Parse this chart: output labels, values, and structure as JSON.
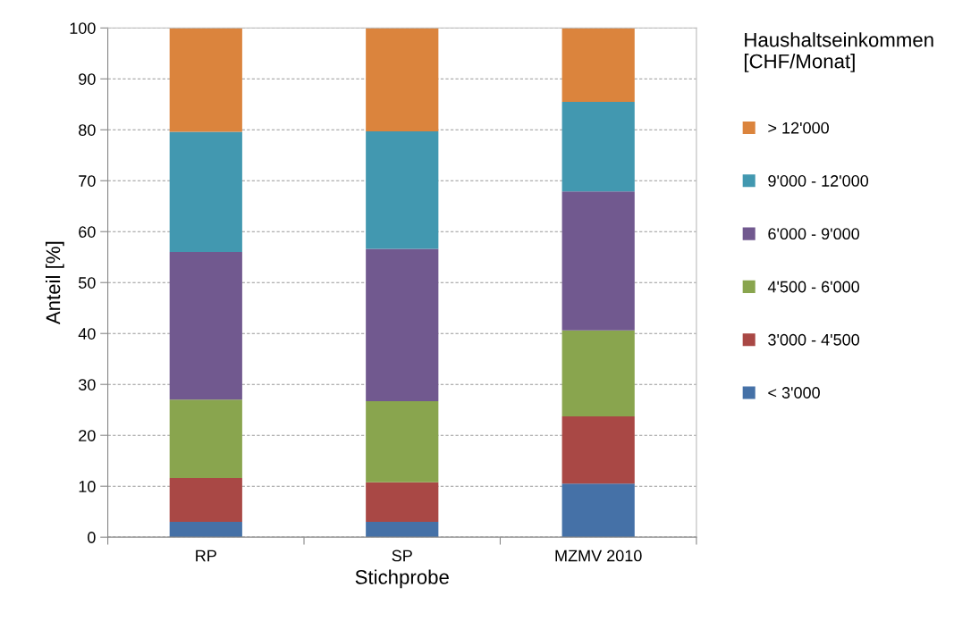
{
  "chart_data": {
    "type": "bar",
    "stacked": true,
    "xlabel": "Stichprobe",
    "ylabel": "Anteil [%]",
    "legend_title": "Haushaltseinkommen\n[CHF/Monat]",
    "legend": "right",
    "categories": [
      "RP",
      "SP",
      "MZMV 2010"
    ],
    "series": [
      {
        "name": "< 3'000",
        "color": "#4571a7",
        "values": [
          3.0,
          3.0,
          10.5
        ]
      },
      {
        "name": "3'000 - 4'500",
        "color": "#a94845",
        "values": [
          8.6,
          7.8,
          13.2
        ]
      },
      {
        "name": "4'500 - 6'000",
        "color": "#89a54e",
        "values": [
          15.4,
          15.9,
          16.9
        ]
      },
      {
        "name": "6'000 - 9'000",
        "color": "#71598f",
        "values": [
          29.0,
          29.9,
          27.3
        ]
      },
      {
        "name": "9'000 - 12'000",
        "color": "#4298b0",
        "values": [
          23.6,
          23.1,
          17.6
        ]
      },
      {
        "name": "> 12'000",
        "color": "#db843d",
        "values": [
          20.4,
          20.3,
          14.5
        ]
      }
    ],
    "ylim": [
      0,
      100
    ],
    "yticks": [
      0,
      10,
      20,
      30,
      40,
      50,
      60,
      70,
      80,
      90,
      100
    ],
    "grid": "y"
  }
}
